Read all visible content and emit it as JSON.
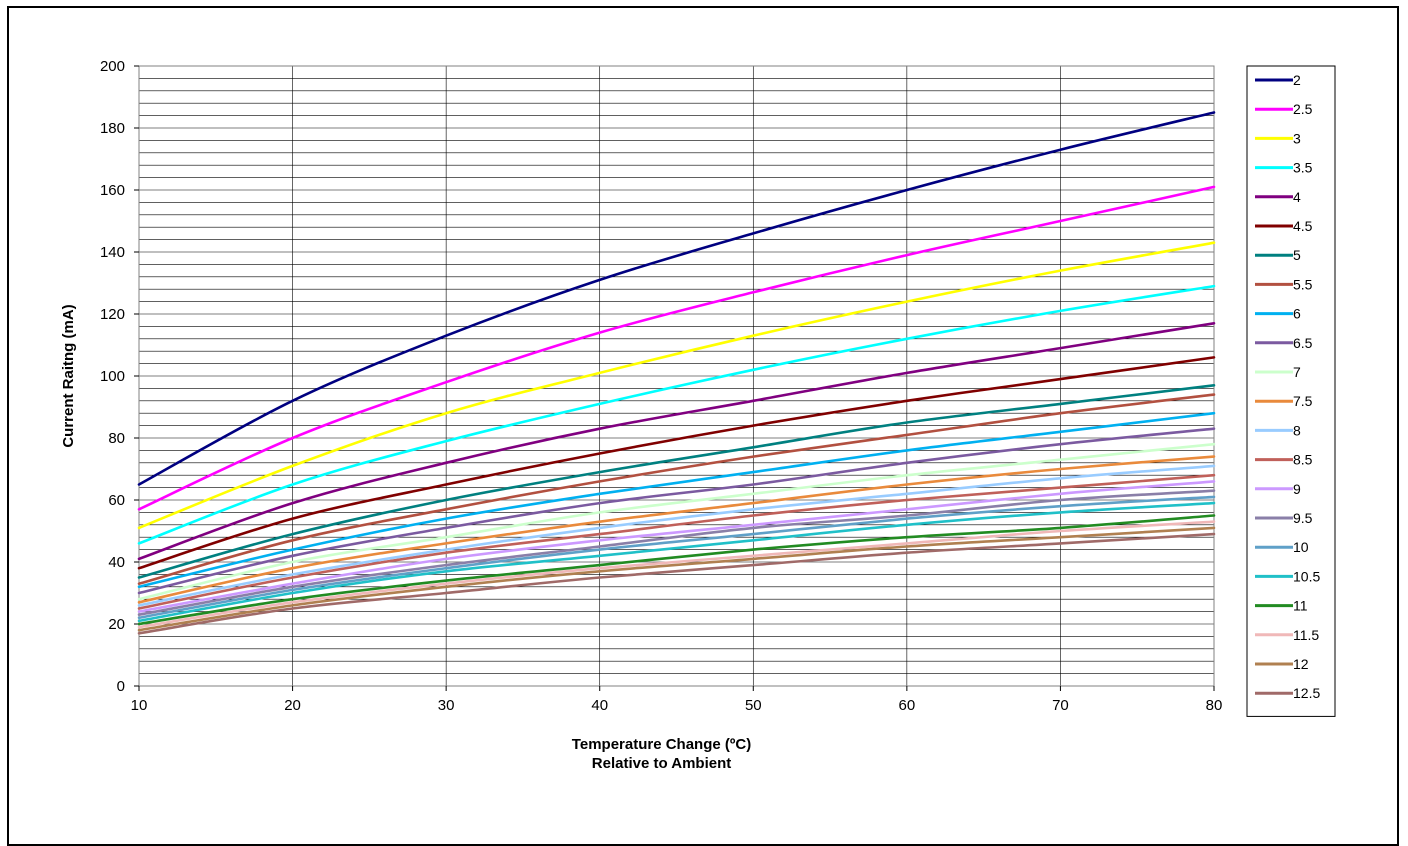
{
  "chart_data": {
    "type": "line",
    "title": "",
    "xlabel": "Temperature Change (ºC)",
    "xlabel_line2": "Relative to Ambient",
    "ylabel": "Current Raitng (mA)",
    "xlim": [
      10,
      80
    ],
    "ylim": [
      0,
      200
    ],
    "x_ticks": [
      "10",
      "20",
      "30",
      "40",
      "50",
      "60",
      "70",
      "80"
    ],
    "y_ticks": [
      "0",
      "20",
      "40",
      "60",
      "80",
      "100",
      "120",
      "140",
      "160",
      "180",
      "200"
    ],
    "y_minor_step": 4,
    "grid": "on",
    "legend_placement": "right",
    "x": [
      10,
      20,
      30,
      40,
      50,
      60,
      70,
      80
    ],
    "series": [
      {
        "name": "2",
        "color": "#000080",
        "values": [
          65,
          92,
          113,
          131,
          146,
          160,
          173,
          185
        ]
      },
      {
        "name": "2.5",
        "color": "#ff00ff",
        "values": [
          57,
          80,
          98,
          114,
          127,
          139,
          150,
          161
        ]
      },
      {
        "name": "3",
        "color": "#ffff00",
        "values": [
          51,
          71,
          88,
          101,
          113,
          124,
          134,
          143
        ]
      },
      {
        "name": "3.5",
        "color": "#00ffff",
        "values": [
          46,
          65,
          79,
          91,
          102,
          112,
          121,
          129
        ]
      },
      {
        "name": "4",
        "color": "#800080",
        "values": [
          41,
          59,
          72,
          83,
          92,
          101,
          109,
          117
        ]
      },
      {
        "name": "4.5",
        "color": "#800000",
        "values": [
          38,
          54,
          65,
          75,
          84,
          92,
          99,
          106
        ]
      },
      {
        "name": "5",
        "color": "#008080",
        "values": [
          35,
          49,
          60,
          69,
          77,
          85,
          91,
          97
        ]
      },
      {
        "name": "5.5",
        "color": "#b25040",
        "values": [
          33,
          47,
          57,
          66,
          74,
          81,
          88,
          94
        ]
      },
      {
        "name": "6",
        "color": "#00b0f0",
        "values": [
          32,
          44,
          54,
          62,
          69,
          76,
          82,
          88
        ]
      },
      {
        "name": "6.5",
        "color": "#7b5aa0",
        "values": [
          30,
          42,
          51,
          59,
          65,
          72,
          78,
          83
        ]
      },
      {
        "name": "7",
        "color": "#ccffcc",
        "values": [
          28,
          40,
          48,
          56,
          62,
          68,
          73,
          78
        ]
      },
      {
        "name": "7.5",
        "color": "#e98a3c",
        "values": [
          27,
          38,
          46,
          53,
          59,
          65,
          70,
          74
        ]
      },
      {
        "name": "8",
        "color": "#99ccff",
        "values": [
          26,
          36,
          44,
          51,
          57,
          62,
          67,
          71
        ]
      },
      {
        "name": "8.5",
        "color": "#c0605a",
        "values": [
          25,
          35,
          43,
          49,
          55,
          60,
          64,
          68
        ]
      },
      {
        "name": "9",
        "color": "#cc99ff",
        "values": [
          24,
          33,
          41,
          47,
          52,
          57,
          62,
          66
        ]
      },
      {
        "name": "9.5",
        "color": "#8a7fa8",
        "values": [
          23,
          32,
          39,
          45,
          51,
          55,
          60,
          63
        ]
      },
      {
        "name": "10",
        "color": "#5fa0c8",
        "values": [
          22,
          31,
          38,
          44,
          49,
          54,
          58,
          61
        ]
      },
      {
        "name": "10.5",
        "color": "#20c0c8",
        "values": [
          21,
          30,
          37,
          42,
          47,
          52,
          56,
          59
        ]
      },
      {
        "name": "11",
        "color": "#228b22",
        "values": [
          20,
          28,
          34,
          39,
          44,
          48,
          51,
          55
        ]
      },
      {
        "name": "11.5",
        "color": "#f0b8b8",
        "values": [
          19,
          27,
          33,
          38,
          42,
          46,
          50,
          53
        ]
      },
      {
        "name": "12",
        "color": "#b08050",
        "values": [
          18,
          26,
          32,
          37,
          41,
          45,
          48,
          51
        ]
      },
      {
        "name": "12.5",
        "color": "#a06a68",
        "values": [
          17,
          25,
          30,
          35,
          39,
          43,
          46,
          49
        ]
      }
    ]
  }
}
